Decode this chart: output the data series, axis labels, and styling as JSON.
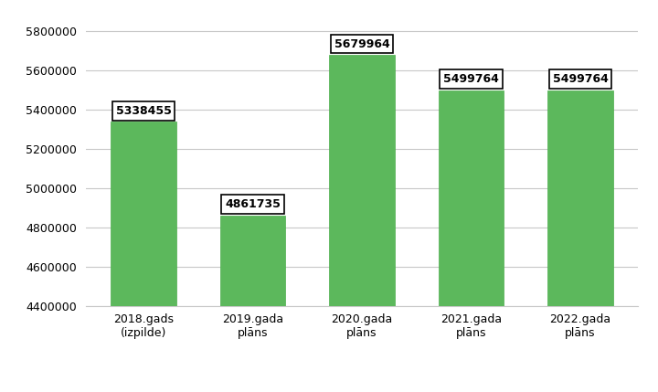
{
  "categories": [
    "2018.gads\n(izpilde)",
    "2019.gada\nplāns",
    "2020.gada\nplāns",
    "2021.gada\nplāns",
    "2022.gada\nplāns"
  ],
  "values": [
    5338455,
    4861735,
    5679964,
    5499764,
    5499764
  ],
  "bar_color": "#5cb85c",
  "bar_edge_color": "#4cae4c",
  "ylim": [
    4400000,
    5900000
  ],
  "yticks": [
    4400000,
    4600000,
    4800000,
    5000000,
    5200000,
    5400000,
    5600000,
    5800000
  ],
  "legend_color": "#5cb85c",
  "background_color": "#ffffff",
  "grid_color": "#c8c8c8",
  "tick_fontsize": 9,
  "annotation_fontsize": 9,
  "bar_width": 0.6
}
